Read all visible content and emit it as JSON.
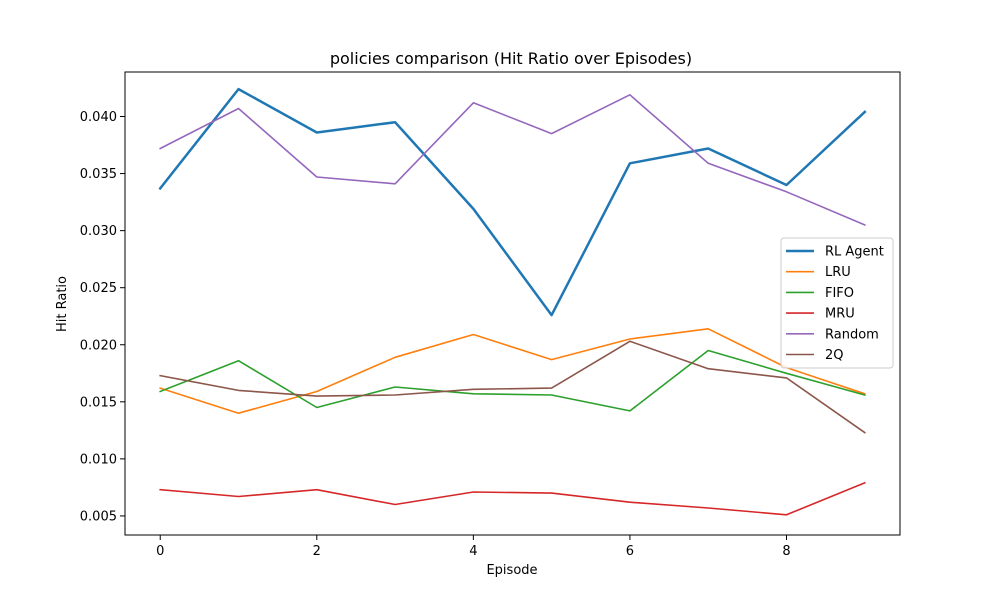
{
  "chart_data": {
    "type": "line",
    "title": "policies comparison (Hit Ratio over Episodes)",
    "xlabel": "Episode",
    "ylabel": "Hit Ratio",
    "xlim": [
      -0.45,
      9.45
    ],
    "ylim": [
      0.00333,
      0.0439
    ],
    "x": [
      0,
      1,
      2,
      3,
      4,
      5,
      6,
      7,
      8,
      9
    ],
    "x_ticks": [
      0,
      2,
      4,
      6,
      8
    ],
    "x_tick_labels": [
      "0",
      "2",
      "4",
      "6",
      "8"
    ],
    "y_ticks": [
      0.005,
      0.01,
      0.015,
      0.02,
      0.025,
      0.03,
      0.035,
      0.04
    ],
    "y_tick_labels": [
      "0.005",
      "0.010",
      "0.015",
      "0.020",
      "0.025",
      "0.030",
      "0.035",
      "0.040"
    ],
    "grid": false,
    "legend_position": "center-right",
    "series": [
      {
        "name": "RL Agent",
        "color": "#1f77b4",
        "emphasis": true,
        "values": [
          0.0337,
          0.0424,
          0.0386,
          0.0395,
          0.0319,
          0.0226,
          0.0359,
          0.0372,
          0.034,
          0.0404
        ]
      },
      {
        "name": "LRU",
        "color": "#ff7f0e",
        "values": [
          0.0162,
          0.014,
          0.0159,
          0.0189,
          0.0209,
          0.0187,
          0.0205,
          0.0214,
          0.018,
          0.0157
        ]
      },
      {
        "name": "FIFO",
        "color": "#2ca02c",
        "values": [
          0.0159,
          0.0186,
          0.0145,
          0.0163,
          0.0157,
          0.0156,
          0.0142,
          0.0195,
          0.0175,
          0.0156
        ]
      },
      {
        "name": "MRU",
        "color": "#d62728",
        "values": [
          0.0073,
          0.0067,
          0.0073,
          0.006,
          0.0071,
          0.007,
          0.0062,
          0.0057,
          0.0051,
          0.0079
        ]
      },
      {
        "name": "Random",
        "color": "#9467bd",
        "values": [
          0.0372,
          0.0407,
          0.0347,
          0.0341,
          0.0412,
          0.0385,
          0.0419,
          0.0359,
          0.0334,
          0.0305
        ]
      },
      {
        "name": "2Q",
        "color": "#8c564b",
        "values": [
          0.0173,
          0.016,
          0.0155,
          0.0156,
          0.0161,
          0.0162,
          0.0203,
          0.0179,
          0.0171,
          0.0123
        ]
      }
    ]
  }
}
